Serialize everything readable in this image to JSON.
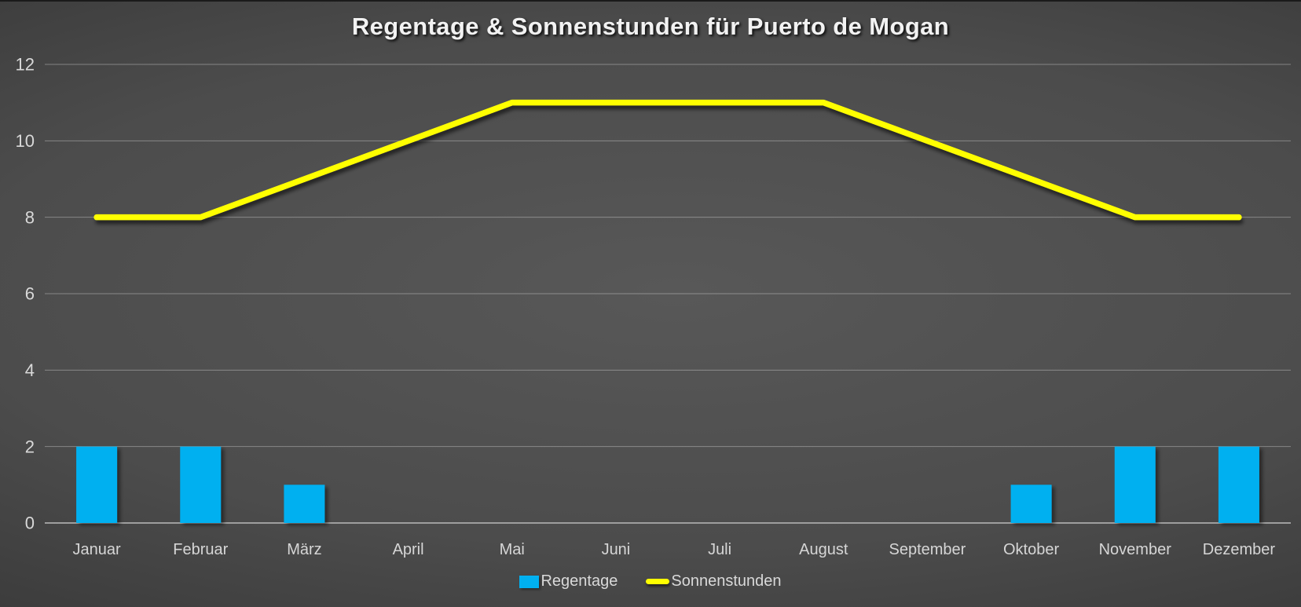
{
  "title": "Regentage & Sonnenstunden für Puerto de Mogan",
  "colors": {
    "bar": "#00B0F0",
    "line": "#FFFF00",
    "background_center": "#565656",
    "background_edge": "#262626",
    "gridline": "rgba(255,255,255,0.33)",
    "axis_line": "#9e9e9e",
    "text": "#d9d9d9"
  },
  "chart_data": {
    "type": "combo",
    "title": "Regentage & Sonnenstunden für Puerto de Mogan",
    "categories": [
      "Januar",
      "Februar",
      "März",
      "April",
      "Mai",
      "Juni",
      "Juli",
      "August",
      "September",
      "Oktober",
      "November",
      "Dezember"
    ],
    "series": [
      {
        "name": "Regentage",
        "type": "bar",
        "color": "#00B0F0",
        "values": [
          2,
          2,
          1,
          0,
          0,
          0,
          0,
          0,
          0,
          1,
          2,
          2
        ]
      },
      {
        "name": "Sonnenstunden",
        "type": "line",
        "color": "#FFFF00",
        "values": [
          8,
          8,
          9,
          10,
          11,
          11,
          11,
          11,
          10,
          9,
          8,
          8
        ]
      }
    ],
    "xlabel": "",
    "ylabel": "",
    "ylim": [
      0,
      12
    ],
    "yticks": [
      0,
      2,
      4,
      6,
      8,
      10,
      12
    ],
    "grid": true,
    "legend_position": "bottom"
  }
}
